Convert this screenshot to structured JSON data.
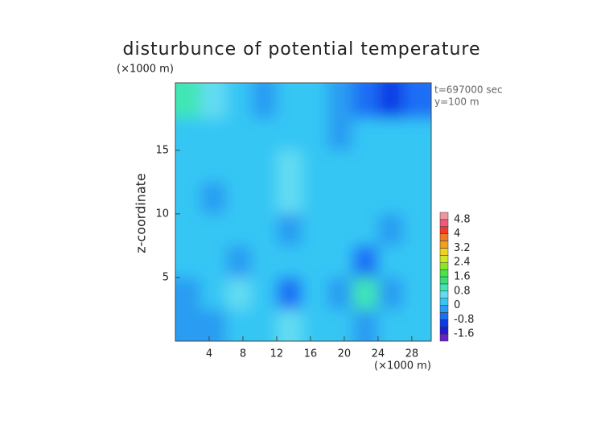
{
  "chart_data": {
    "type": "contour",
    "title": "disturbunce of potential temperature",
    "y_unit": "(×1000 m)",
    "x_unit": "(×1000 m)",
    "y_label": "z-coordinate",
    "annotations": [
      "t=697000 sec",
      "y=100 m"
    ],
    "xlim": [
      0,
      30.3
    ],
    "ylim": [
      0,
      20.3
    ],
    "xticks": [
      4,
      8,
      12,
      16,
      20,
      24,
      28
    ],
    "yticks": [
      5,
      10,
      15
    ],
    "x": [
      1.5,
      4.5,
      7.5,
      10.5,
      13.5,
      16.5,
      19.5,
      22.5,
      25.5,
      28.5
    ],
    "z": [
      18.75,
      16.25,
      13.75,
      11.25,
      8.75,
      6.25,
      3.75,
      1.25
    ],
    "field": [
      [
        1.0,
        0.6,
        0.0,
        -0.2,
        0.1,
        0.0,
        -0.3,
        -0.8,
        -1.0,
        -0.5
      ],
      [
        0.3,
        0.2,
        0.1,
        0.1,
        0.2,
        0.1,
        -0.3,
        0.0,
        0.1,
        0.0
      ],
      [
        0.1,
        0.2,
        0.2,
        0.3,
        0.4,
        0.3,
        0.1,
        0.1,
        0.2,
        0.1
      ],
      [
        0.0,
        -0.2,
        0.2,
        0.3,
        0.4,
        0.3,
        0.2,
        0.1,
        0.1,
        0.0
      ],
      [
        0.1,
        0.0,
        0.1,
        0.2,
        -0.2,
        0.2,
        0.1,
        0.0,
        -0.1,
        0.0
      ],
      [
        0.1,
        0.0,
        -0.4,
        0.1,
        0.0,
        0.2,
        0.0,
        -0.8,
        0.3,
        0.1
      ],
      [
        -0.3,
        0.2,
        0.5,
        0.0,
        -0.5,
        0.0,
        -0.3,
        1.0,
        -0.2,
        0.1
      ],
      [
        -0.2,
        -0.3,
        0.3,
        0.0,
        0.5,
        0.2,
        0.0,
        -0.2,
        0.0,
        0.1
      ]
    ],
    "levels": [
      -2.0,
      -1.6,
      -1.2,
      -0.8,
      -0.4,
      0,
      0.4,
      0.8,
      1.2,
      1.6,
      2.0,
      2.4,
      2.8,
      3.2,
      3.6,
      4.0,
      4.4,
      4.8,
      5.2
    ],
    "colors": [
      "#6a1fc8",
      "#1e1ecd",
      "#0a3ce6",
      "#1e6ef5",
      "#2a9cf2",
      "#36c6f4",
      "#62dcf2",
      "#40e6b4",
      "#3cdc78",
      "#46e646",
      "#8ce628",
      "#d2e628",
      "#f0d21e",
      "#f0a01e",
      "#f07828",
      "#f03c28",
      "#f05a78",
      "#f096a0"
    ],
    "colorbar_ticks": [
      -1.6,
      -0.8,
      0,
      0.8,
      1.6,
      2.4,
      3.2,
      4,
      4.8
    ]
  }
}
